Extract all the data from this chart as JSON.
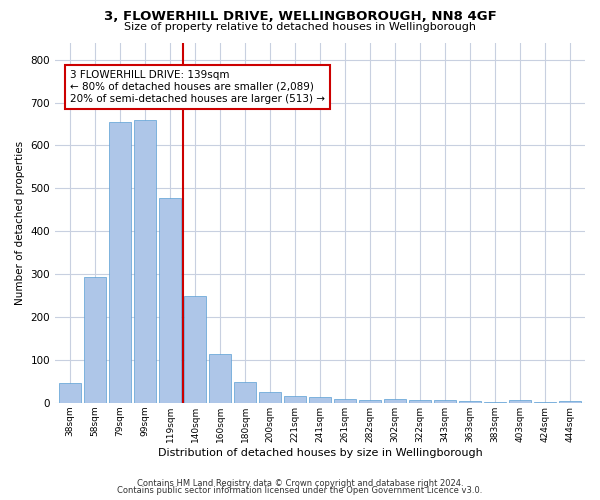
{
  "title": "3, FLOWERHILL DRIVE, WELLINGBOROUGH, NN8 4GF",
  "subtitle": "Size of property relative to detached houses in Wellingborough",
  "xlabel": "Distribution of detached houses by size in Wellingborough",
  "ylabel": "Number of detached properties",
  "categories": [
    "38sqm",
    "58sqm",
    "79sqm",
    "99sqm",
    "119sqm",
    "140sqm",
    "160sqm",
    "180sqm",
    "200sqm",
    "221sqm",
    "241sqm",
    "261sqm",
    "282sqm",
    "302sqm",
    "322sqm",
    "343sqm",
    "363sqm",
    "383sqm",
    "403sqm",
    "424sqm",
    "444sqm"
  ],
  "values": [
    45,
    293,
    655,
    660,
    478,
    250,
    113,
    48,
    25,
    15,
    13,
    10,
    7,
    8,
    7,
    7,
    4,
    2,
    6,
    2,
    4
  ],
  "bar_color": "#aec6e8",
  "bar_edge_color": "#5a9fd4",
  "background_color": "#ffffff",
  "grid_color": "#c8d0e0",
  "red_line_x": 4.5,
  "annotation_text": "3 FLOWERHILL DRIVE: 139sqm\n← 80% of detached houses are smaller (2,089)\n20% of semi-detached houses are larger (513) →",
  "annotation_box_color": "#ffffff",
  "annotation_box_edge_color": "#cc0000",
  "ylim": [
    0,
    840
  ],
  "yticks": [
    0,
    100,
    200,
    300,
    400,
    500,
    600,
    700,
    800
  ],
  "footer_line1": "Contains HM Land Registry data © Crown copyright and database right 2024.",
  "footer_line2": "Contains public sector information licensed under the Open Government Licence v3.0."
}
